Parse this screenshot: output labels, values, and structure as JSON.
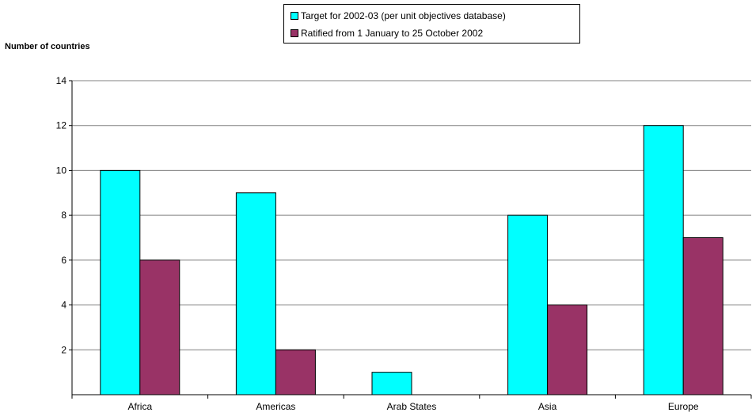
{
  "chart_data": {
    "type": "bar",
    "categories": [
      "Africa",
      "Americas",
      "Arab States",
      "Asia",
      "Europe"
    ],
    "series": [
      {
        "name": "Target for 2002-03 (per unit objectives database)",
        "values": [
          10,
          9,
          1,
          8,
          12
        ],
        "color": "#00FFFF"
      },
      {
        "name": "Ratified from 1 January to 25 October 2002",
        "values": [
          6,
          2,
          0,
          4,
          7
        ],
        "color": "#993366"
      }
    ],
    "title": "",
    "xlabel": "",
    "ylabel": "Number of countries",
    "ylim": [
      0,
      14
    ],
    "yticks": [
      2,
      4,
      6,
      8,
      10,
      12,
      14
    ],
    "grid": true,
    "legend_position": "top-center"
  }
}
